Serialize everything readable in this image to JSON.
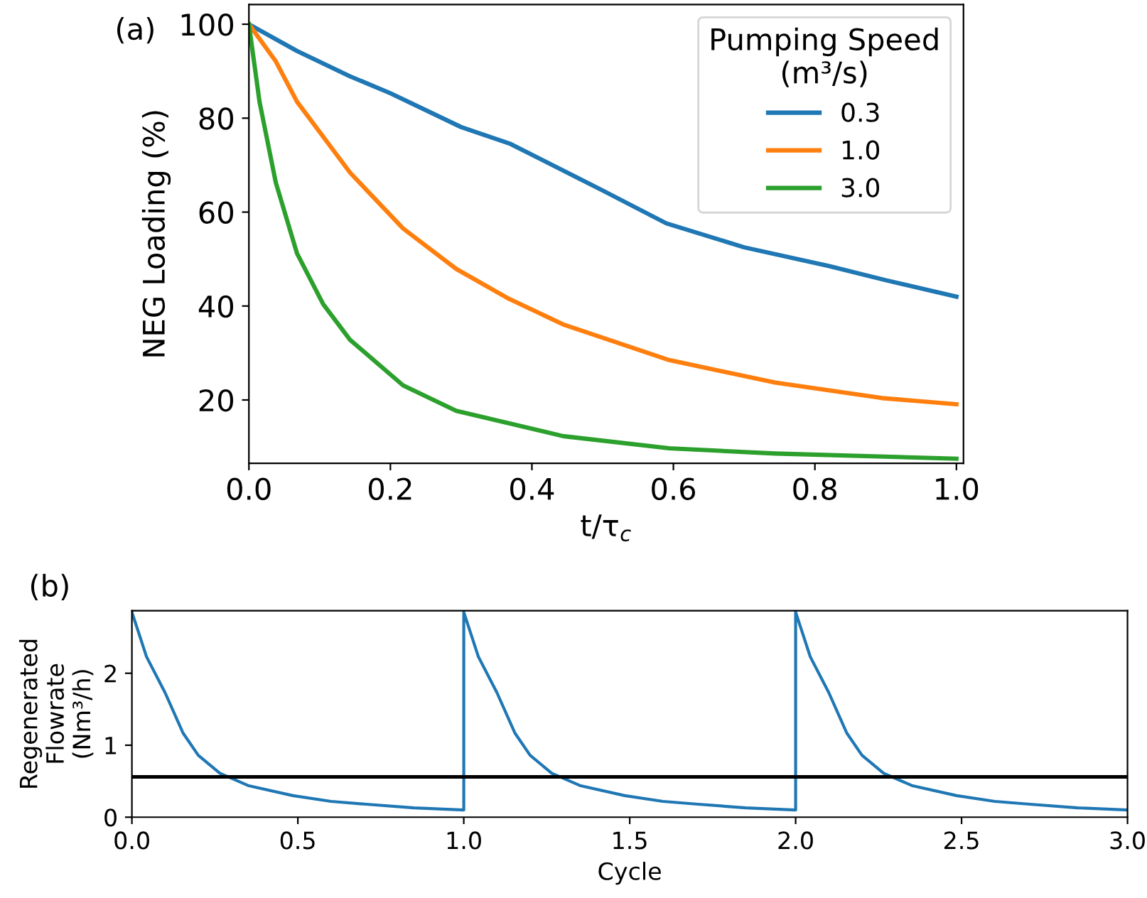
{
  "chart_data": [
    {
      "type": "line",
      "xlabel": "t/τ$_{c}$",
      "ylabel": "NEG Loading (%)",
      "legend_title": "Pumping Speed\n(m³/s)",
      "legend": "top right",
      "grid": false,
      "marker": "none",
      "line_style": "solid",
      "xlim": [
        0,
        1.01
      ],
      "ylim": [
        6.5,
        104.2
      ],
      "xticks": [
        {
          "value": 0,
          "label": "0.0"
        },
        {
          "value": 0.2,
          "label": "0.2"
        },
        {
          "value": 0.4,
          "label": "0.4"
        },
        {
          "value": 0.6,
          "label": "0.6"
        },
        {
          "value": 0.8,
          "label": "0.8"
        },
        {
          "value": 1.0,
          "label": "1.0"
        }
      ],
      "yticks": [
        20,
        40,
        60,
        80,
        100
      ],
      "annotations": [
        "(a)"
      ],
      "series": [
        {
          "name": "0.3",
          "color": "#1f77b4",
          "x": [
            0,
            0.068,
            0.143,
            0.2,
            0.3,
            0.37,
            0.5,
            0.59,
            0.7,
            0.82,
            0.9,
            1.0
          ],
          "values": [
            100,
            94.3,
            88.9,
            85.3,
            78.1,
            74.5,
            64.6,
            57.6,
            52.5,
            48.5,
            45.5,
            42
          ]
        },
        {
          "name": "1.0",
          "color": "#ff7f0e",
          "x": [
            0,
            0.038,
            0.068,
            0.143,
            0.218,
            0.293,
            0.368,
            0.444,
            0.594,
            0.744,
            0.895,
            1.0
          ],
          "values": [
            100,
            92.1,
            83.5,
            68.4,
            56.5,
            47.9,
            41.5,
            36.1,
            28.5,
            23.7,
            20.4,
            19.1
          ]
        },
        {
          "name": "3.0",
          "color": "#2ca02c",
          "x": [
            0,
            0.015,
            0.038,
            0.068,
            0.105,
            0.143,
            0.218,
            0.293,
            0.444,
            0.594,
            0.744,
            1.0
          ],
          "values": [
            100,
            83.5,
            66.3,
            51.2,
            40.4,
            32.8,
            23.1,
            17.7,
            12.3,
            9.7,
            8.6,
            7.5
          ]
        }
      ]
    },
    {
      "type": "line",
      "xlabel": "Cycle",
      "ylabel": "Regenerated\nFlowrate\n(Nm³/h)",
      "legend": false,
      "grid": false,
      "marker": "none",
      "line_style": "solid",
      "xlim": [
        0,
        3
      ],
      "ylim": [
        0,
        2.87
      ],
      "xticks": [
        {
          "value": 0,
          "label": "0.0"
        },
        {
          "value": 0.5,
          "label": "0.5"
        },
        {
          "value": 1,
          "label": "1.0"
        },
        {
          "value": 1.5,
          "label": "1.5"
        },
        {
          "value": 2,
          "label": "2.0"
        },
        {
          "value": 2.5,
          "label": "2.5"
        },
        {
          "value": 3,
          "label": "3.0"
        }
      ],
      "yticks": [
        0,
        1,
        2
      ],
      "annotations": [
        "(b)"
      ],
      "ref_lines": [
        {
          "axis": "y",
          "value": 0.56,
          "color": "#000000"
        }
      ],
      "series": [
        {
          "color": "#1f77b4",
          "x": [
            0,
            0.022,
            0.044,
            0.1,
            0.154,
            0.2,
            0.265,
            0.35,
            0.485,
            0.6,
            0.706,
            0.85,
            1.0,
            1.0,
            1.022,
            1.044,
            1.1,
            1.154,
            1.2,
            1.265,
            1.35,
            1.485,
            1.6,
            1.706,
            1.85,
            2.0,
            2.0,
            2.022,
            2.044,
            2.1,
            2.154,
            2.2,
            2.265,
            2.35,
            2.485,
            2.6,
            2.706,
            2.85,
            3.0
          ],
          "values": [
            2.85,
            2.54,
            2.23,
            1.73,
            1.17,
            0.86,
            0.61,
            0.44,
            0.3,
            0.22,
            0.18,
            0.13,
            0.1,
            2.85,
            2.54,
            2.23,
            1.73,
            1.17,
            0.86,
            0.61,
            0.44,
            0.3,
            0.22,
            0.18,
            0.13,
            0.1,
            2.85,
            2.54,
            2.23,
            1.73,
            1.17,
            0.86,
            0.61,
            0.44,
            0.3,
            0.22,
            0.18,
            0.13,
            0.1
          ]
        }
      ]
    }
  ]
}
